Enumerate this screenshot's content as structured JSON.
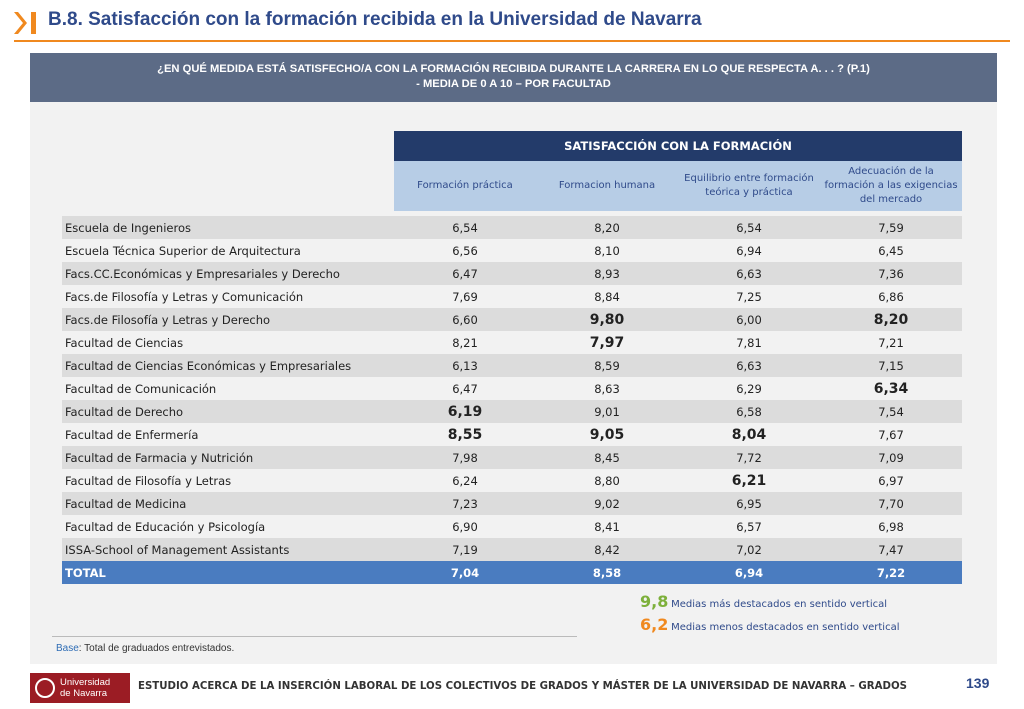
{
  "header": {
    "title": "B.8. Satisfacción con la formación recibida en la Universidad de Navarra",
    "accent_color": "#f0891f",
    "mark_icon": "chevron-bar-icon"
  },
  "question": {
    "line1": "¿EN QUÉ MEDIDA ESTÁ SATISFECHO/A CON LA FORMACIÓN RECIBIDA DURANTE LA CARRERA EN LO QUE RESPECTA A. . . ? (P.1)",
    "line2": "- MEDIA DE 0 A 10 – POR FACULTAD"
  },
  "table": {
    "group_header": "SATISFACCIÓN CON LA FORMACIÓN",
    "columns": [
      "Formación práctica",
      "Formacion humana",
      "Equilibrio entre formación teórica y práctica",
      "Adecuación de la formación a las exigencias del mercado"
    ],
    "rows": [
      {
        "name": "Escuela de Ingenieros",
        "values": [
          "6,54",
          "8,20",
          "6,54",
          "7,59"
        ]
      },
      {
        "name": "Escuela Técnica Superior de Arquitectura",
        "values": [
          "6,56",
          "8,10",
          "6,94",
          "6,45"
        ]
      },
      {
        "name": "Facs.CC.Económicas y Empresariales y Derecho",
        "values": [
          "6,47",
          "8,93",
          "6,63",
          "7,36"
        ]
      },
      {
        "name": "Facs.de Filosofía y Letras y Comunicación",
        "values": [
          "7,69",
          "8,84",
          "7,25",
          "6,86"
        ]
      },
      {
        "name": "Facs.de Filosofía y Letras y Derecho",
        "values": [
          "6,60",
          "9,80",
          "6,00",
          "8,20"
        ]
      },
      {
        "name": "Facultad de Ciencias",
        "values": [
          "8,21",
          "7,97",
          "7,81",
          "7,21"
        ]
      },
      {
        "name": "Facultad de Ciencias Económicas y Empresariales",
        "values": [
          "6,13",
          "8,59",
          "6,63",
          "7,15"
        ]
      },
      {
        "name": "Facultad de Comunicación",
        "values": [
          "6,47",
          "8,63",
          "6,29",
          "6,34"
        ]
      },
      {
        "name": "Facultad de Derecho",
        "values": [
          "6,19",
          "9,01",
          "6,58",
          "7,54"
        ]
      },
      {
        "name": "Facultad de Enfermería",
        "values": [
          "8,55",
          "9,05",
          "8,04",
          "7,67"
        ]
      },
      {
        "name": "Facultad de Farmacia y Nutrición",
        "values": [
          "7,98",
          "8,45",
          "7,72",
          "7,09"
        ]
      },
      {
        "name": "Facultad de Filosofía y Letras",
        "values": [
          "6,24",
          "8,80",
          "6,21",
          "6,97"
        ]
      },
      {
        "name": "Facultad de Medicina",
        "values": [
          "7,23",
          "9,02",
          "6,95",
          "7,70"
        ]
      },
      {
        "name": "Facultad de Educación y Psicología",
        "values": [
          "6,90",
          "8,41",
          "6,57",
          "6,98"
        ]
      },
      {
        "name": "ISSA-School of Management Assistants",
        "values": [
          "7,19",
          "8,42",
          "7,02",
          "7,47"
        ]
      }
    ],
    "total": {
      "name": "TOTAL",
      "values": [
        "7,04",
        "8,58",
        "6,94",
        "7,22"
      ]
    },
    "highlight_high": [
      [
        4,
        1
      ],
      [
        4,
        3
      ],
      [
        9,
        0
      ],
      [
        9,
        1
      ],
      [
        9,
        2
      ]
    ],
    "highlight_low": [
      [
        5,
        1
      ],
      [
        7,
        3
      ],
      [
        8,
        0
      ],
      [
        11,
        2
      ]
    ],
    "colors": {
      "high": "#7db03b",
      "low": "#f0891f",
      "header": "#233b6a",
      "subheader": "#b7cde6",
      "total": "#4a7cc0"
    }
  },
  "legend": {
    "high_num": "9,8",
    "high_text": "Medias más destacados en sentido vertical",
    "low_num": "6,2",
    "low_text": "Medias menos destacados en sentido vertical"
  },
  "base": {
    "label": "Base",
    "text": ": Total de graduados entrevistados."
  },
  "footer": {
    "logo_line1": "Universidad",
    "logo_line2": "de Navarra",
    "text": "ESTUDIO ACERCA DE LA INSERCIÓN LABORAL DE LOS COLECTIVOS DE GRADOS Y MÁSTER DE LA UNIVERSIDAD DE NAVARRA – GRADOS",
    "page": "139"
  }
}
